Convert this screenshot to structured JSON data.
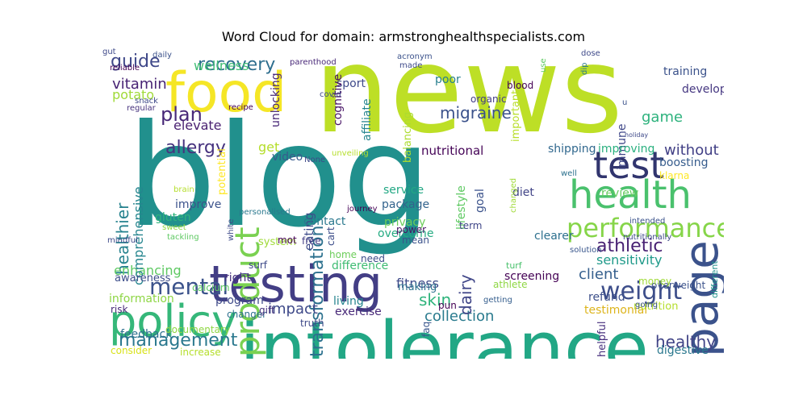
{
  "title": "Word Cloud for domain: armstronghealthspecialists.com",
  "words": [
    {
      "text": "news",
      "color": "#bddf26"
    },
    {
      "text": "blog",
      "color": "#21908d"
    },
    {
      "text": "intolerance",
      "color": "#22a785"
    },
    {
      "text": "food",
      "color": "#f5e626"
    },
    {
      "text": "testing",
      "color": "#433e85"
    },
    {
      "text": "health",
      "color": "#4ac16d"
    },
    {
      "text": "policy",
      "color": "#35b779"
    },
    {
      "text": "page",
      "color": "#3b528b"
    },
    {
      "text": "test",
      "color": "#31356e"
    },
    {
      "text": "product",
      "color": "#7ad151"
    },
    {
      "text": "performance",
      "color": "#86d549"
    },
    {
      "text": "weight",
      "color": "#3d4e8a"
    },
    {
      "text": "mental",
      "color": "#3b528b"
    },
    {
      "text": "management",
      "color": "#2a788e"
    },
    {
      "text": "athletic",
      "color": "#482173"
    },
    {
      "text": "allergy",
      "color": "#46327e"
    },
    {
      "text": "plan",
      "color": "#482878"
    },
    {
      "text": "recovery",
      "color": "#2e6e8e"
    },
    {
      "text": "healthier",
      "color": "#26828e"
    },
    {
      "text": "transformation",
      "color": "#2c718e"
    },
    {
      "text": "skin",
      "color": "#2fb47c"
    },
    {
      "text": "collection",
      "color": "#2a7b8e"
    },
    {
      "text": "migraine",
      "color": "#3b528b"
    },
    {
      "text": "guide",
      "color": "#3f4889"
    },
    {
      "text": "game",
      "color": "#2db27d"
    },
    {
      "text": "healthy",
      "color": "#414487"
    },
    {
      "text": "sensitivity",
      "color": "#1f9a8a"
    },
    {
      "text": "enhancing",
      "color": "#5ec962"
    },
    {
      "text": "fitness",
      "color": "#3e4a89"
    },
    {
      "text": "vitamin",
      "color": "#482475"
    },
    {
      "text": "elevate",
      "color": "#481f70"
    },
    {
      "text": "dairy",
      "color": "#404688"
    },
    {
      "text": "client",
      "color": "#355f8d"
    },
    {
      "text": "impact",
      "color": "#3e4989"
    },
    {
      "text": "comprehensive",
      "color": "#25858e"
    },
    {
      "text": "potato",
      "color": "#a0da39"
    },
    {
      "text": "training",
      "color": "#3b528b"
    },
    {
      "text": "without",
      "color": "#424086"
    },
    {
      "text": "immune",
      "color": "#3f4788"
    },
    {
      "text": "review",
      "color": "#65cb5e"
    },
    {
      "text": "nutritional",
      "color": "#450457"
    },
    {
      "text": "eating",
      "color": "#3e4c8a"
    },
    {
      "text": "get",
      "color": "#b5de2b"
    },
    {
      "text": "feedback",
      "color": "#2d708e"
    },
    {
      "text": "screening",
      "color": "#440154"
    },
    {
      "text": "wellness",
      "color": "#3fbc73"
    },
    {
      "text": "exercise",
      "color": "#482979"
    },
    {
      "text": "package",
      "color": "#33638d"
    },
    {
      "text": "boosting",
      "color": "#365c8d"
    },
    {
      "text": "improving",
      "color": "#2ab07f"
    },
    {
      "text": "shipping",
      "color": "#31688e"
    },
    {
      "text": "program",
      "color": "#3e4a89"
    },
    {
      "text": "difference",
      "color": "#3fbc73"
    },
    {
      "text": "testimonial",
      "color": "#ddb41c"
    },
    {
      "text": "refund",
      "color": "#3c4f8a"
    },
    {
      "text": "digestive",
      "color": "#2a788e"
    },
    {
      "text": "living",
      "color": "#25848e"
    },
    {
      "text": "sport",
      "color": "#3e4989"
    },
    {
      "text": "poor",
      "color": "#277f8e"
    },
    {
      "text": "video",
      "color": "#375b8d"
    },
    {
      "text": "right",
      "color": "#46307e"
    },
    {
      "text": "information",
      "color": "#8ed645"
    },
    {
      "text": "awareness",
      "color": "#3d4e8a"
    },
    {
      "text": "service",
      "color": "#22a884"
    },
    {
      "text": "privacy",
      "color": "#6ccd5a"
    },
    {
      "text": "overcome",
      "color": "#25ab82"
    },
    {
      "text": "clearer",
      "color": "#2d708e"
    },
    {
      "text": "contact",
      "color": "#2a788e"
    },
    {
      "text": "gluten",
      "color": "#2fb47c"
    },
    {
      "text": "improve",
      "color": "#3b528b"
    },
    {
      "text": "unlocking",
      "color": "#482878"
    },
    {
      "text": "potential",
      "color": "#fde725"
    },
    {
      "text": "cognitive",
      "color": "#471365"
    },
    {
      "text": "affiliate",
      "color": "#25858e"
    },
    {
      "text": "balancing",
      "color": "#addc30"
    },
    {
      "text": "important",
      "color": "#b8de29"
    },
    {
      "text": "lifestyle",
      "color": "#5ec962"
    },
    {
      "text": "goal",
      "color": "#3b528b"
    },
    {
      "text": "diet",
      "color": "#414487"
    },
    {
      "text": "developing",
      "color": "#453781"
    },
    {
      "text": "klarna",
      "color": "#fde725"
    },
    {
      "text": "overweight",
      "color": "#3b528b"
    },
    {
      "text": "nutrition",
      "color": "#b5de2b"
    },
    {
      "text": "helpful",
      "color": "#472f7d"
    },
    {
      "text": "faq",
      "color": "#39568c"
    },
    {
      "text": "making",
      "color": "#2c728e"
    },
    {
      "text": "term",
      "color": "#404688"
    },
    {
      "text": "system",
      "color": "#a0da39"
    },
    {
      "text": "cart",
      "color": "#3d4e8a"
    },
    {
      "text": "mot",
      "color": "#440154"
    },
    {
      "text": "risk",
      "color": "#482878"
    },
    {
      "text": "consider",
      "color": "#d8e219"
    },
    {
      "text": "increase",
      "color": "#b5de2b"
    },
    {
      "text": "documentary",
      "color": "#8fd744"
    },
    {
      "text": "changer",
      "color": "#2d708e"
    },
    {
      "text": "truth",
      "color": "#3e4989"
    },
    {
      "text": "gift",
      "color": "#46327e"
    },
    {
      "text": "free",
      "color": "#433e85"
    },
    {
      "text": "home",
      "color": "#6ccd5a"
    },
    {
      "text": "need",
      "color": "#3d4d8a"
    },
    {
      "text": "power",
      "color": "#471365"
    },
    {
      "text": "mean",
      "color": "#3b528b"
    },
    {
      "text": "pun",
      "color": "#440154"
    },
    {
      "text": "calcium",
      "color": "#5ec962"
    },
    {
      "text": "surf",
      "color": "#3e4a89"
    },
    {
      "text": "athlete",
      "color": "#8fd744"
    },
    {
      "text": "money",
      "color": "#a0da39"
    },
    {
      "text": "getting",
      "color": "#355e8d"
    },
    {
      "text": "going",
      "color": "#3b528b"
    },
    {
      "text": "turf",
      "color": "#4ac16d"
    },
    {
      "text": "different",
      "color": "#21918c"
    },
    {
      "text": "nutritionally",
      "color": "#3e4a89"
    },
    {
      "text": "intended",
      "color": "#3b528b"
    },
    {
      "text": "solution",
      "color": "#39568c"
    },
    {
      "text": "well",
      "color": "#2c718e"
    },
    {
      "text": "changed",
      "color": "#a0da39"
    },
    {
      "text": "brain",
      "color": "#b5de2b"
    },
    {
      "text": "white",
      "color": "#3e4a89"
    },
    {
      "text": "personalised",
      "color": "#2a788e"
    },
    {
      "text": "journey",
      "color": "#440154"
    },
    {
      "text": "sweet",
      "color": "#8fd744"
    },
    {
      "text": "tackling",
      "color": "#5ec962"
    },
    {
      "text": "mindful",
      "color": "#3e4989"
    },
    {
      "text": "daily",
      "color": "#3b528b"
    },
    {
      "text": "reliable",
      "color": "#440154"
    },
    {
      "text": "snack",
      "color": "#3e4989"
    },
    {
      "text": "regular",
      "color": "#46327e"
    },
    {
      "text": "recipe",
      "color": "#440154"
    },
    {
      "text": "parenthood",
      "color": "#482878"
    },
    {
      "text": "covid",
      "color": "#3e4989"
    },
    {
      "text": "organic",
      "color": "#433e85"
    },
    {
      "text": "acronym",
      "color": "#3b528b"
    },
    {
      "text": "made",
      "color": "#3e4a89"
    },
    {
      "text": "dose",
      "color": "#3e4989"
    },
    {
      "text": "dip",
      "color": "#2a788e"
    },
    {
      "text": "use",
      "color": "#5ec962"
    },
    {
      "text": "blood",
      "color": "#440154"
    },
    {
      "text": "u",
      "color": "#3b528b"
    },
    {
      "text": "holiday",
      "color": "#3e4989"
    },
    {
      "text": "None",
      "color": "#3e4a89"
    },
    {
      "text": "unveiling",
      "color": "#b5de2b"
    },
    {
      "text": "gut",
      "color": "#3e4989"
    }
  ]
}
